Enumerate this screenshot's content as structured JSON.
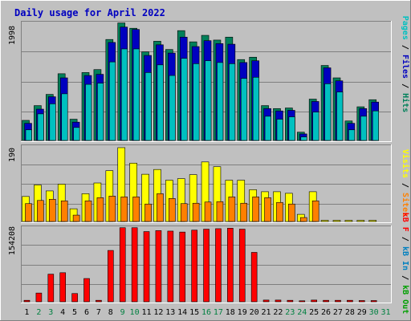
{
  "title": "Daily usage for April 2022",
  "colors": {
    "frame": "#c0c0c0",
    "panel": "#c0c0c0",
    "grid": "#7f7f7f",
    "title": "#0000c0",
    "pages": "#00c0c0",
    "files": "#0000c0",
    "hits": "#00805a",
    "visits": "#ffff00",
    "sites": "#ff8000",
    "kbf": "#ff0000",
    "kbin": "#0080c0",
    "kbout": "#00a000",
    "weekend": "#008040",
    "weekday": "#000000"
  },
  "chart_data": [
    {
      "type": "bar",
      "panel": "hits-files-pages",
      "ymax_label": "1998",
      "legend": {
        "pages": "Pages",
        "files": "Files",
        "hits": "Hits",
        "sep": "/"
      },
      "ylim": [
        0,
        1998
      ],
      "x": [
        1,
        2,
        3,
        4,
        5,
        6,
        7,
        8,
        9,
        10,
        11,
        12,
        13,
        14,
        15,
        16,
        17,
        18,
        19,
        20,
        21,
        22,
        23,
        24,
        25,
        26,
        27,
        28,
        29,
        30,
        31
      ],
      "series": [
        {
          "name": "Hits",
          "values": [
            340,
            590,
            780,
            1130,
            360,
            1150,
            1200,
            1710,
            1990,
            1900,
            1500,
            1680,
            1540,
            1860,
            1670,
            1780,
            1700,
            1750,
            1370,
            1410,
            590,
            540,
            550,
            140,
            700,
            1270,
            1060,
            330,
            570,
            690,
            0
          ]
        },
        {
          "name": "Files",
          "values": [
            290,
            530,
            740,
            1060,
            310,
            1100,
            1120,
            1660,
            1920,
            1880,
            1440,
            1620,
            1480,
            1750,
            1590,
            1690,
            1640,
            1630,
            1320,
            1350,
            540,
            500,
            510,
            110,
            660,
            1230,
            1010,
            290,
            540,
            650,
            0
          ]
        },
        {
          "name": "Pages",
          "values": [
            180,
            450,
            620,
            790,
            220,
            950,
            970,
            1330,
            1550,
            1550,
            1150,
            1280,
            1100,
            1390,
            1300,
            1350,
            1320,
            1300,
            1050,
            1070,
            410,
            360,
            400,
            60,
            480,
            960,
            820,
            180,
            410,
            500,
            0
          ]
        }
      ]
    },
    {
      "type": "bar",
      "panel": "visits-sites",
      "ymax_label": "190",
      "legend": {
        "visits": "Visits",
        "sites": "Sites",
        "sep": "/"
      },
      "ylim": [
        0,
        190
      ],
      "x": [
        1,
        2,
        3,
        4,
        5,
        6,
        7,
        8,
        9,
        10,
        11,
        12,
        13,
        14,
        15,
        16,
        17,
        18,
        19,
        20,
        21,
        22,
        23,
        24,
        25,
        26,
        27,
        28,
        29,
        30,
        31
      ],
      "series": [
        {
          "name": "Visits",
          "values": [
            63,
            92,
            77,
            94,
            32,
            70,
            97,
            128,
            186,
            147,
            119,
            131,
            104,
            108,
            118,
            150,
            138,
            104,
            104,
            80,
            75,
            75,
            71,
            18,
            75,
            3,
            3,
            3,
            3,
            3,
            0
          ]
        },
        {
          "name": "Sites",
          "values": [
            45,
            53,
            56,
            52,
            16,
            52,
            60,
            64,
            62,
            62,
            44,
            70,
            58,
            45,
            46,
            49,
            50,
            62,
            46,
            62,
            60,
            48,
            44,
            10,
            52,
            0,
            0,
            0,
            0,
            0,
            0
          ]
        }
      ]
    },
    {
      "type": "bar",
      "panel": "kbytes",
      "ymax_label": "154208",
      "legend": {
        "kbf": "kB F",
        "kbin": "kB In",
        "kbout": "kB Out",
        "sep": "/"
      },
      "ylim": [
        0,
        154208
      ],
      "x": [
        1,
        2,
        3,
        4,
        5,
        6,
        7,
        8,
        9,
        10,
        11,
        12,
        13,
        14,
        15,
        16,
        17,
        18,
        19,
        20,
        21,
        22,
        23,
        24,
        25,
        26,
        27,
        28,
        29,
        30,
        31
      ],
      "x_tick_labels": [
        "1",
        "2",
        "3",
        "4",
        "5",
        "6",
        "7",
        "8",
        "9",
        "10",
        "11",
        "12",
        "13",
        "14",
        "15",
        "16",
        "17",
        "18",
        "19",
        "20",
        "21",
        "22",
        "23",
        "24",
        "25",
        "26",
        "27",
        "28",
        "29",
        "30",
        "31"
      ],
      "weekend_days": [
        2,
        3,
        9,
        10,
        16,
        17,
        23,
        24,
        30,
        31
      ],
      "series": [
        {
          "name": "kB F",
          "values": [
            3000,
            18000,
            57000,
            60000,
            17000,
            48000,
            3000,
            106000,
            153000,
            153000,
            145000,
            147000,
            146000,
            144000,
            148000,
            150000,
            151000,
            152000,
            150000,
            102000,
            3500,
            3500,
            3000,
            2000,
            3500,
            3000,
            3000,
            3000,
            2500,
            2500,
            0
          ]
        }
      ]
    }
  ]
}
